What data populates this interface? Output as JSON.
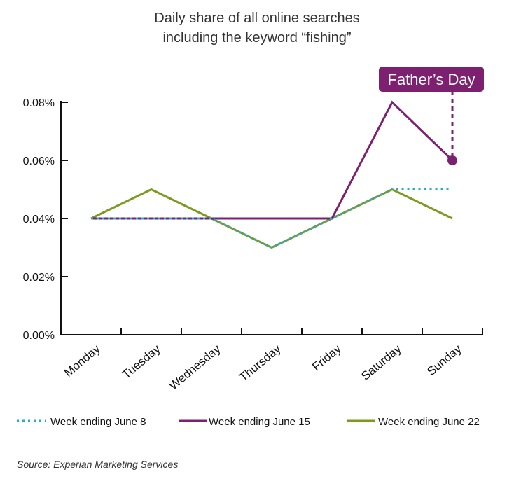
{
  "chart_data": {
    "type": "line",
    "title_line1": "Daily share of all online searches",
    "title_line2": "including the keyword “fishing”",
    "categories": [
      "Monday",
      "Tuesday",
      "Wednesday",
      "Thursday",
      "Friday",
      "Saturday",
      "Sunday"
    ],
    "y_ticks": [
      "0.00%",
      "0.02%",
      "0.04%",
      "0.06%",
      "0.08%"
    ],
    "ylim": [
      0,
      0.08
    ],
    "series": [
      {
        "name": "Week ending June 8",
        "color": "#29a8d4",
        "style": "dotted",
        "values": [
          0.04,
          0.04,
          0.04,
          0.03,
          0.04,
          0.05,
          0.05
        ]
      },
      {
        "name": "Week ending June 15",
        "color": "#7d2070",
        "style": "solid",
        "values": [
          0.04,
          0.04,
          0.04,
          0.04,
          0.04,
          0.08,
          0.06
        ]
      },
      {
        "name": "Week ending June 22",
        "color": "#7b9a1e",
        "style": "solid",
        "values": [
          0.04,
          0.05,
          0.04,
          0.03,
          0.04,
          0.05,
          0.04
        ]
      }
    ],
    "annotation": {
      "label": "Father’s Day",
      "category": "Sunday",
      "series": "Week ending June 15",
      "color": "#7d2070"
    },
    "source": "Source: Experian Marketing Services"
  }
}
